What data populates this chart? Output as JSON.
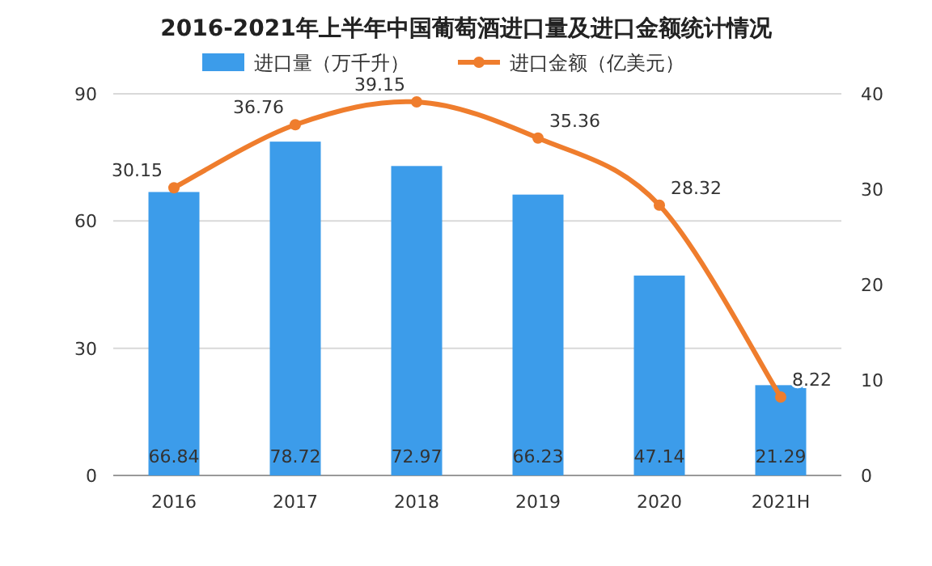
{
  "chart_data": {
    "type": "bar",
    "title": "2016-2021年上半年中国葡萄酒进口量及进口金额统计情况",
    "categories": [
      "2016",
      "2017",
      "2018",
      "2019",
      "2020",
      "2021H"
    ],
    "series": [
      {
        "name": "进口量（万千升）",
        "color": "#3c9cea",
        "values": [
          66.84,
          78.72,
          72.97,
          66.23,
          47.14,
          21.29
        ]
      },
      {
        "name": "进口金额（亿美元）",
        "type": "line",
        "axis": "y2",
        "color": "#ef7d2d",
        "marker": "circle",
        "values": [
          30.15,
          36.76,
          39.15,
          35.36,
          28.32,
          8.22
        ]
      }
    ],
    "ylim": [
      0,
      90
    ],
    "yticks": [
      0,
      30,
      60,
      90
    ],
    "y2lim": [
      0,
      40
    ],
    "y2ticks": [
      0,
      10,
      20,
      30,
      40
    ],
    "grid": "y",
    "legend": "top",
    "data_labels": true
  }
}
